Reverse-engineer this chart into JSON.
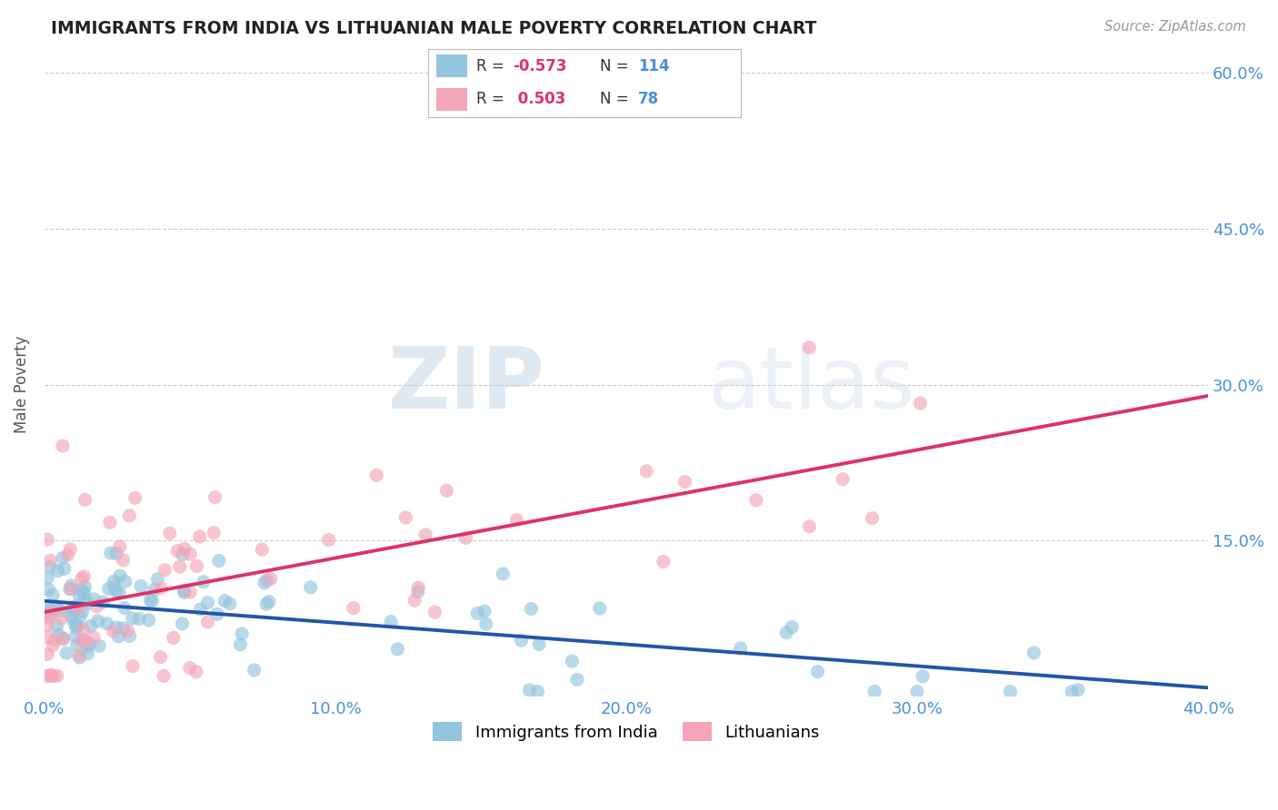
{
  "title": "IMMIGRANTS FROM INDIA VS LITHUANIAN MALE POVERTY CORRELATION CHART",
  "source": "Source: ZipAtlas.com",
  "watermark": "ZIPatlas",
  "legend1_label": "Immigrants from India",
  "legend2_label": "Lithuanians",
  "R1": -0.573,
  "N1": 114,
  "R2": 0.503,
  "N2": 78,
  "color1": "#92c5de",
  "color2": "#f4a6b8",
  "line1_color": "#2255aa",
  "line2_color": "#dd3366",
  "xlim": [
    0.0,
    0.4
  ],
  "ylim": [
    0.0,
    0.6
  ],
  "yticks": [
    0.0,
    0.15,
    0.3,
    0.45,
    0.6
  ],
  "ytick_labels": [
    "",
    "15.0%",
    "30.0%",
    "45.0%",
    "60.0%"
  ],
  "xticks": [
    0.0,
    0.1,
    0.2,
    0.3,
    0.4
  ],
  "xtick_labels": [
    "0.0%",
    "10.0%",
    "20.0%",
    "30.0%",
    "40.0%"
  ],
  "ylabel": "Male Poverty",
  "background_color": "#ffffff",
  "grid_color": "#cccccc",
  "title_color": "#222222",
  "axis_label_color": "#555555",
  "tick_label_color": "#4a90d9"
}
